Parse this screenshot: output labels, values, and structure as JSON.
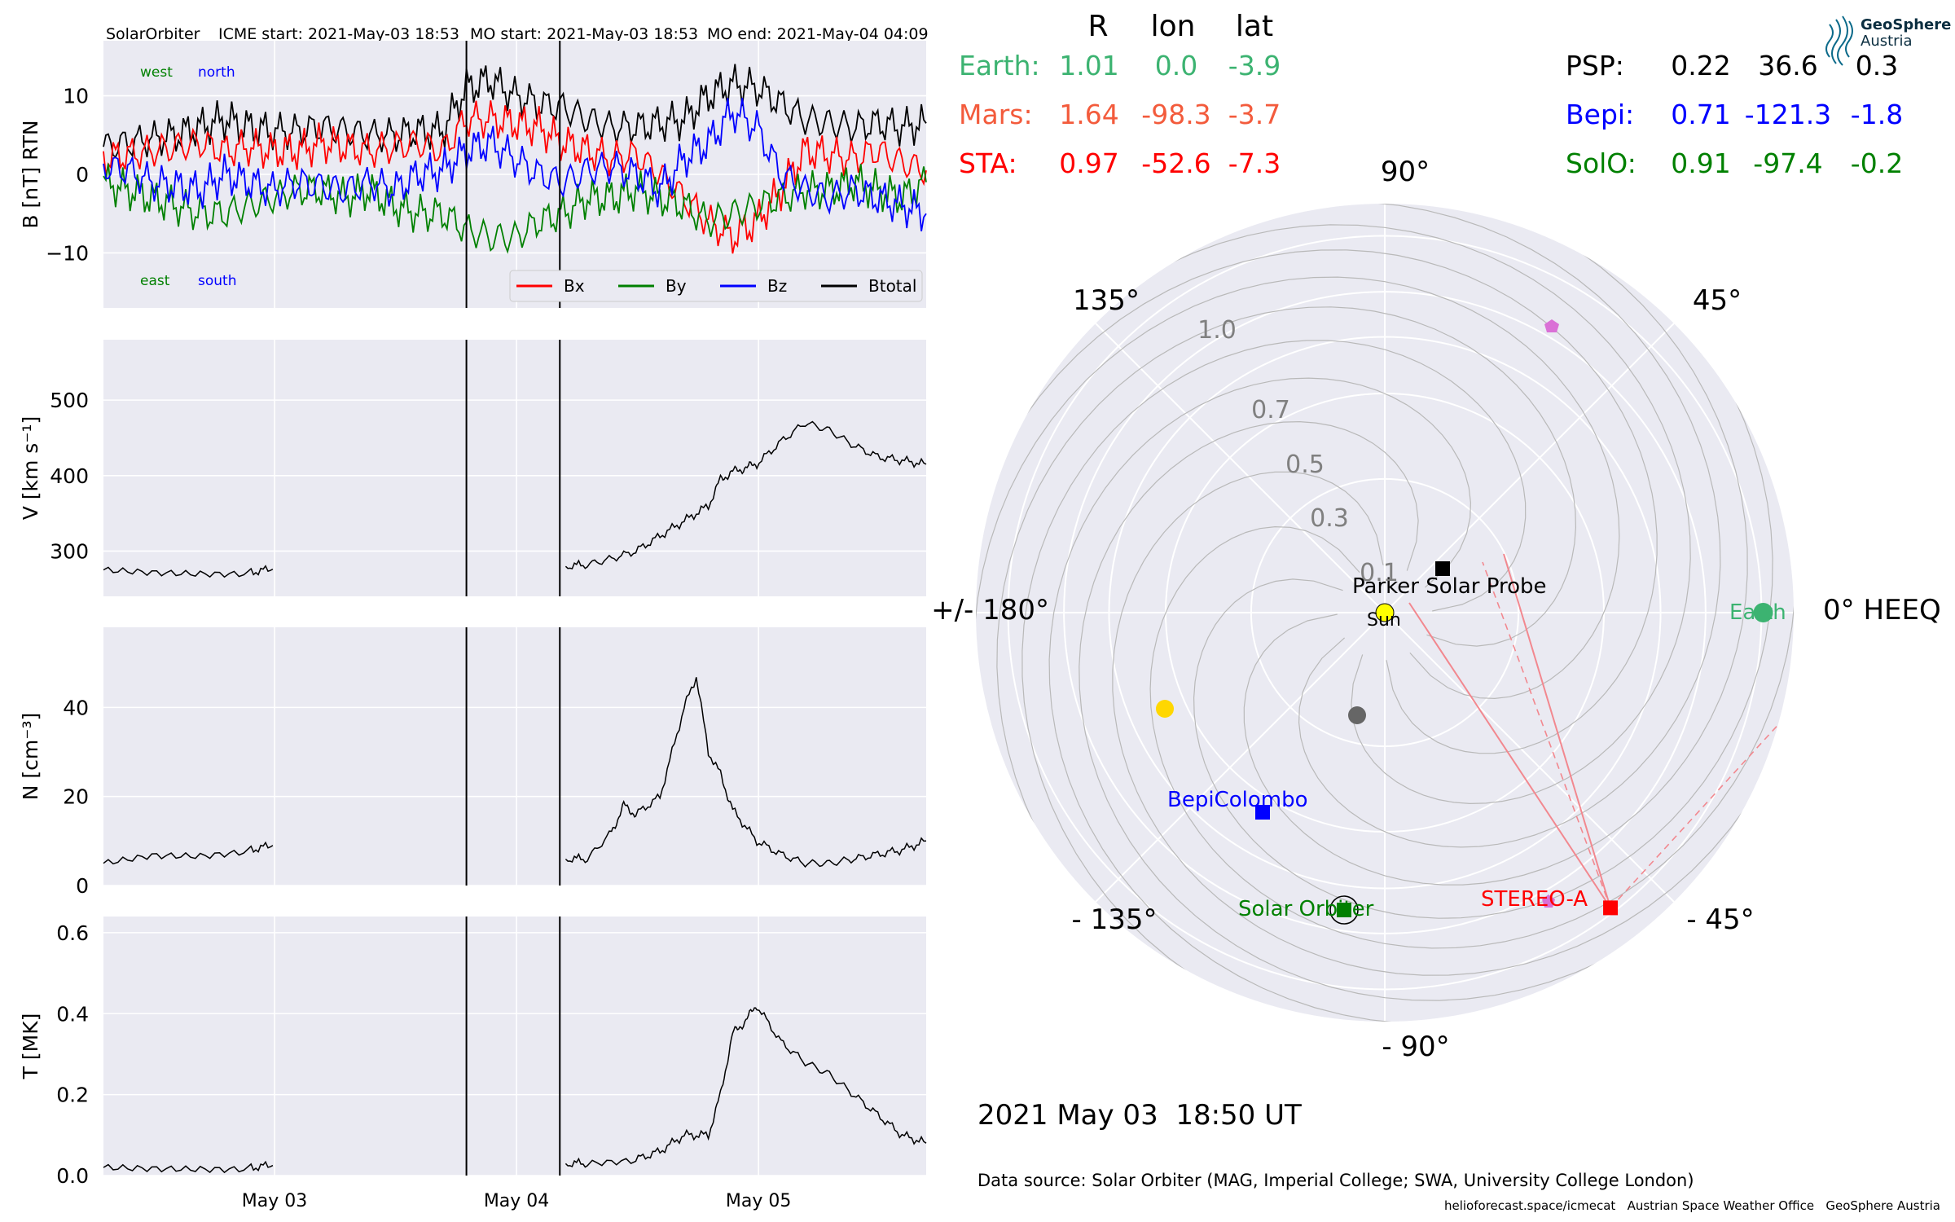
{
  "header": {
    "spacecraft": "SolarOrbiter",
    "icme_start": "ICME start: 2021-May-03 18:53",
    "mo_start": "MO start: 2021-May-03 18:53",
    "mo_end": "MO end: 2021-May-04 04:09"
  },
  "logo": {
    "name": "GeoSphere",
    "sub": "Austria"
  },
  "positions_table": {
    "headers": [
      "R",
      "lon",
      "lat"
    ],
    "rows": [
      {
        "name": "Earth:",
        "r": "1.01",
        "lon": "0.0",
        "lat": "-3.9",
        "color": "#3cb371"
      },
      {
        "name": "Mars:",
        "r": "1.64",
        "lon": "-98.3",
        "lat": "-3.7",
        "color": "#f35b3c"
      },
      {
        "name": "STA:",
        "r": "0.97",
        "lon": "-52.6",
        "lat": "-7.3",
        "color": "#ff0000"
      },
      {
        "name": "PSP:",
        "r": "0.22",
        "lon": "36.6",
        "lat": "0.3",
        "color": "#000000"
      },
      {
        "name": "Bepi:",
        "r": "0.71",
        "lon": "-121.3",
        "lat": "-1.8",
        "color": "#0000ff"
      },
      {
        "name": "SolO:",
        "r": "0.91",
        "lon": "-97.4",
        "lat": "-0.2",
        "color": "#008000"
      }
    ]
  },
  "polar": {
    "angle_labels": [
      "90°",
      "45°",
      "0° HEEQ",
      "- 45°",
      "- 90°",
      "- 135°",
      "+/- 180°",
      "135°"
    ],
    "radial_labels": [
      "0.1",
      "0.3",
      "0.5",
      "0.7",
      "1.0"
    ],
    "bodies": [
      {
        "label": "Earth",
        "color": "#3cb371",
        "r": 1.01,
        "lon": 0.0
      },
      {
        "label": "STEREO-A",
        "color": "#ff0000",
        "r": 0.97,
        "lon": -52.6
      },
      {
        "label": "Solar Orbiter",
        "color": "#008000",
        "r": 0.91,
        "lon": -97.4
      },
      {
        "label": "BepiColombo",
        "color": "#0000ff",
        "r": 0.71,
        "lon": -121.3
      },
      {
        "label": "Parker Solar Probe",
        "color": "#000000",
        "r": 0.22,
        "lon": 36.6
      },
      {
        "label": "Sun",
        "color": "#ffff00"
      }
    ],
    "date_label": "2021 May 03  18:50 UT",
    "data_source": "Data source: Solar Orbiter (MAG, Imperial College; SWA, University College London)",
    "footer": "helioforecast.space/icmecat   Austrian Space Weather Office   GeoSphere Austria"
  },
  "chart_data": [
    {
      "type": "line",
      "ylabel": "B [nT] RTN",
      "ylim": [
        -17,
        17
      ],
      "yticks": [
        "10",
        "0",
        "−10"
      ],
      "annotations": [
        "west",
        "north",
        "east",
        "south"
      ],
      "legend": [
        "Bx",
        "By",
        "Bz",
        "Btotal"
      ],
      "series": [
        {
          "name": "Btotal",
          "color": "#000000",
          "x": [
            0.0,
            0.1,
            0.2,
            0.3,
            0.4,
            0.5,
            0.6,
            0.7,
            0.8,
            0.9,
            1.0,
            1.1,
            1.2,
            1.3,
            1.4,
            1.5,
            1.6,
            1.7,
            1.8,
            1.9,
            2.0,
            2.1,
            2.2,
            2.3,
            2.4,
            2.5,
            2.6,
            2.7,
            2.8,
            2.9,
            3.0,
            3.1,
            3.2,
            3.3,
            3.4
          ],
          "values": [
            3.5,
            4.0,
            4.5,
            5.0,
            6.0,
            7.0,
            6.0,
            5.5,
            5.5,
            6.0,
            5.5,
            5.0,
            5.0,
            5.5,
            5.5,
            11.0,
            12.0,
            10.0,
            9.0,
            8.5,
            7.0,
            6.0,
            6.0,
            6.5,
            7.0,
            10.0,
            11.5,
            11.0,
            9.0,
            7.0,
            6.5,
            6.0,
            6.5,
            6.0,
            6.5
          ]
        },
        {
          "name": "Bx",
          "color": "#ff0000",
          "x": [
            0.0,
            0.1,
            0.2,
            0.3,
            0.4,
            0.5,
            0.6,
            0.7,
            0.8,
            0.9,
            1.0,
            1.1,
            1.2,
            1.3,
            1.4,
            1.5,
            1.6,
            1.7,
            1.8,
            1.9,
            2.0,
            2.1,
            2.2,
            2.3,
            2.4,
            2.5,
            2.6,
            2.7,
            2.8,
            2.9,
            3.0,
            3.1,
            3.2,
            3.3,
            3.4
          ],
          "values": [
            2.0,
            2.5,
            3.0,
            3.5,
            4.0,
            3.0,
            3.5,
            3.0,
            3.0,
            4.0,
            3.5,
            3.0,
            3.5,
            4.0,
            3.0,
            7.0,
            7.0,
            6.5,
            6.0,
            4.0,
            3.0,
            2.0,
            2.5,
            0.0,
            -3.0,
            -6.0,
            -8.0,
            -6.0,
            -2.0,
            3.0,
            2.5,
            2.0,
            3.0,
            1.5,
            0.5
          ]
        },
        {
          "name": "By",
          "color": "#008000",
          "x": [
            0.0,
            0.1,
            0.2,
            0.3,
            0.4,
            0.5,
            0.6,
            0.7,
            0.8,
            0.9,
            1.0,
            1.1,
            1.2,
            1.3,
            1.4,
            1.5,
            1.6,
            1.7,
            1.8,
            1.9,
            2.0,
            2.1,
            2.2,
            2.3,
            2.4,
            2.5,
            2.6,
            2.7,
            2.8,
            2.9,
            3.0,
            3.1,
            3.2,
            3.3,
            3.4
          ],
          "values": [
            -1.0,
            -2.0,
            -3.0,
            -4.0,
            -5.0,
            -5.0,
            -4.0,
            -3.0,
            -2.0,
            -2.0,
            -3.0,
            -2.0,
            -4.0,
            -5.0,
            -5.0,
            -7.0,
            -8.0,
            -8.0,
            -6.0,
            -5.0,
            -3.0,
            -3.0,
            -2.0,
            -3.0,
            -4.0,
            -6.0,
            -5.0,
            -4.0,
            -3.0,
            -2.0,
            -2.0,
            -1.0,
            -2.0,
            -3.0,
            -1.0
          ]
        },
        {
          "name": "Bz",
          "color": "#0000ff",
          "x": [
            0.0,
            0.1,
            0.2,
            0.3,
            0.4,
            0.5,
            0.6,
            0.7,
            0.8,
            0.9,
            1.0,
            1.1,
            1.2,
            1.3,
            1.4,
            1.5,
            1.6,
            1.7,
            1.8,
            1.9,
            2.0,
            2.1,
            2.2,
            2.3,
            2.4,
            2.5,
            2.6,
            2.7,
            2.8,
            2.9,
            3.0,
            3.1,
            3.2,
            3.3,
            3.4
          ],
          "values": [
            1.0,
            0.5,
            -1.0,
            -1.5,
            -2.0,
            0.0,
            -1.0,
            -2.0,
            -1.0,
            -1.5,
            -2.0,
            -1.0,
            -2.0,
            0.0,
            0.5,
            3.0,
            4.0,
            2.0,
            0.0,
            -1.0,
            0.5,
            1.0,
            0.0,
            -2.0,
            2.0,
            4.0,
            8.0,
            6.0,
            0.0,
            -2.0,
            -3.0,
            -2.0,
            -3.0,
            -4.0,
            -5.0
          ]
        }
      ]
    },
    {
      "type": "line",
      "ylabel": "V [km s⁻¹]",
      "ylim": [
        240,
        580
      ],
      "yticks": [
        "500",
        "400",
        "300"
      ],
      "series": [
        {
          "name": "V",
          "color": "#000000",
          "segments": [
            {
              "x": [
                0.0,
                0.2,
                0.4,
                0.6,
                0.7
              ],
              "values": [
                275,
                273,
                272,
                272,
                276
              ]
            },
            {
              "x": [
                1.91,
                2.0,
                2.1,
                2.2,
                2.3,
                2.4,
                2.5,
                2.55,
                2.6,
                2.65,
                2.7,
                2.8,
                2.9,
                3.0,
                3.1,
                3.2,
                3.3,
                3.4
              ],
              "values": [
                280,
                282,
                290,
                300,
                320,
                340,
                360,
                395,
                405,
                410,
                415,
                445,
                470,
                460,
                440,
                425,
                420,
                415
              ]
            }
          ]
        }
      ]
    },
    {
      "type": "line",
      "ylabel": "N [cm⁻³]",
      "ylim": [
        0,
        58
      ],
      "yticks": [
        "40",
        "20",
        "0"
      ],
      "series": [
        {
          "name": "N",
          "color": "#000000",
          "segments": [
            {
              "x": [
                0.0,
                0.2,
                0.4,
                0.6,
                0.7
              ],
              "values": [
                5,
                7,
                7,
                8,
                9
              ]
            },
            {
              "x": [
                1.91,
                2.0,
                2.1,
                2.15,
                2.2,
                2.3,
                2.4,
                2.45,
                2.5,
                2.55,
                2.6,
                2.7,
                2.8,
                2.9,
                3.0,
                3.1,
                3.2,
                3.3,
                3.4
              ],
              "values": [
                6,
                6,
                12,
                18,
                16,
                20,
                40,
                47,
                30,
                25,
                17,
                10,
                7,
                5,
                5,
                6,
                7,
                8,
                10
              ]
            }
          ]
        }
      ]
    },
    {
      "type": "line",
      "ylabel": "T [MK]",
      "ylim": [
        0,
        0.64
      ],
      "yticks": [
        "0.6",
        "0.4",
        "0.2",
        "0.0"
      ],
      "xticks": [
        {
          "x": 0.707,
          "label": "May 03"
        },
        {
          "x": 1.707,
          "label": "May 04"
        },
        {
          "x": 2.707,
          "label": "May 05"
        }
      ],
      "series": [
        {
          "name": "T",
          "color": "#000000",
          "segments": [
            {
              "x": [
                0.0,
                0.2,
                0.4,
                0.6,
                0.7
              ],
              "values": [
                0.02,
                0.02,
                0.02,
                0.02,
                0.025
              ]
            },
            {
              "x": [
                1.91,
                2.0,
                2.2,
                2.3,
                2.4,
                2.5,
                2.55,
                2.6,
                2.65,
                2.7,
                2.8,
                2.9,
                3.0,
                3.1,
                3.2,
                3.3,
                3.4
              ],
              "values": [
                0.03,
                0.03,
                0.04,
                0.06,
                0.1,
                0.1,
                0.2,
                0.35,
                0.38,
                0.42,
                0.33,
                0.28,
                0.25,
                0.2,
                0.15,
                0.1,
                0.08
              ]
            }
          ]
        }
      ]
    }
  ],
  "event_lines_x": [
    1.5,
    1.886
  ]
}
